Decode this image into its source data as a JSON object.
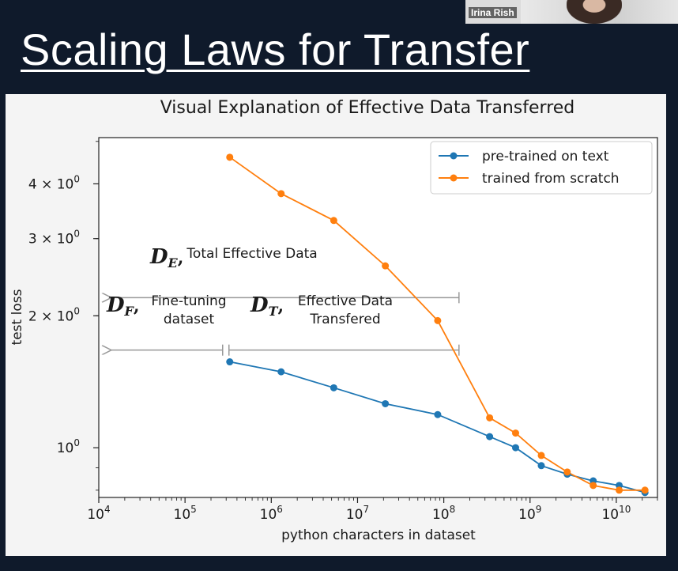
{
  "slide": {
    "title": "Scaling Laws for Transfer"
  },
  "video": {
    "participant_name": "Irina Rish"
  },
  "chart_data": {
    "type": "line",
    "title": "Visual Explanation of Effective Data Transferred",
    "xlabel": "python characters in dataset",
    "ylabel": "test loss",
    "xscale": "log",
    "yscale": "log",
    "xlim": [
      10000,
      30000000000
    ],
    "ylim": [
      0.77,
      5.1
    ],
    "x_ticks": [
      {
        "value": 10000,
        "base": "10",
        "exp": "4"
      },
      {
        "value": 100000,
        "base": "10",
        "exp": "5"
      },
      {
        "value": 1000000,
        "base": "10",
        "exp": "6"
      },
      {
        "value": 10000000,
        "base": "10",
        "exp": "7"
      },
      {
        "value": 100000000,
        "base": "10",
        "exp": "8"
      },
      {
        "value": 1000000000,
        "base": "10",
        "exp": "9"
      },
      {
        "value": 10000000000,
        "base": "10",
        "exp": "10"
      }
    ],
    "y_ticks": [
      {
        "value": 1,
        "label": "10",
        "exp": "0"
      },
      {
        "value": 2,
        "label": "2 × 10",
        "exp": "0"
      },
      {
        "value": 3,
        "label": "3 × 10",
        "exp": "0"
      },
      {
        "value": 4,
        "label": "4 × 10",
        "exp": "0"
      }
    ],
    "legend_position": "top-right",
    "series": [
      {
        "name": "pre-trained on text",
        "color": "#1f77b4",
        "x": [
          330000,
          1300000,
          5300000,
          21000000,
          85000000,
          340000000,
          680000000,
          1350000000,
          2700000000,
          5400000000,
          10800000000,
          21500000000
        ],
        "y": [
          1.57,
          1.49,
          1.37,
          1.26,
          1.19,
          1.06,
          1.0,
          0.91,
          0.87,
          0.84,
          0.82,
          0.79
        ]
      },
      {
        "name": "trained from scratch",
        "color": "#ff7f0e",
        "x": [
          330000,
          1300000,
          5300000,
          21000000,
          85000000,
          340000000,
          680000000,
          1350000000,
          2700000000,
          5400000000,
          10800000000,
          21500000000
        ],
        "y": [
          4.6,
          3.8,
          3.3,
          2.6,
          1.95,
          1.17,
          1.08,
          0.96,
          0.88,
          0.82,
          0.8,
          0.8
        ]
      }
    ],
    "annotations": {
      "de": {
        "symbol": "D",
        "sub": "E",
        "comma": ",",
        "text": "Total Effective Data"
      },
      "df": {
        "symbol": "D",
        "sub": "F",
        "comma": ",",
        "line1": "Fine-tuning",
        "line2": "dataset"
      },
      "dt": {
        "symbol": "D",
        "sub": "T",
        "comma": ",",
        "line1": "Effective Data",
        "line2": "Transfered"
      }
    }
  }
}
